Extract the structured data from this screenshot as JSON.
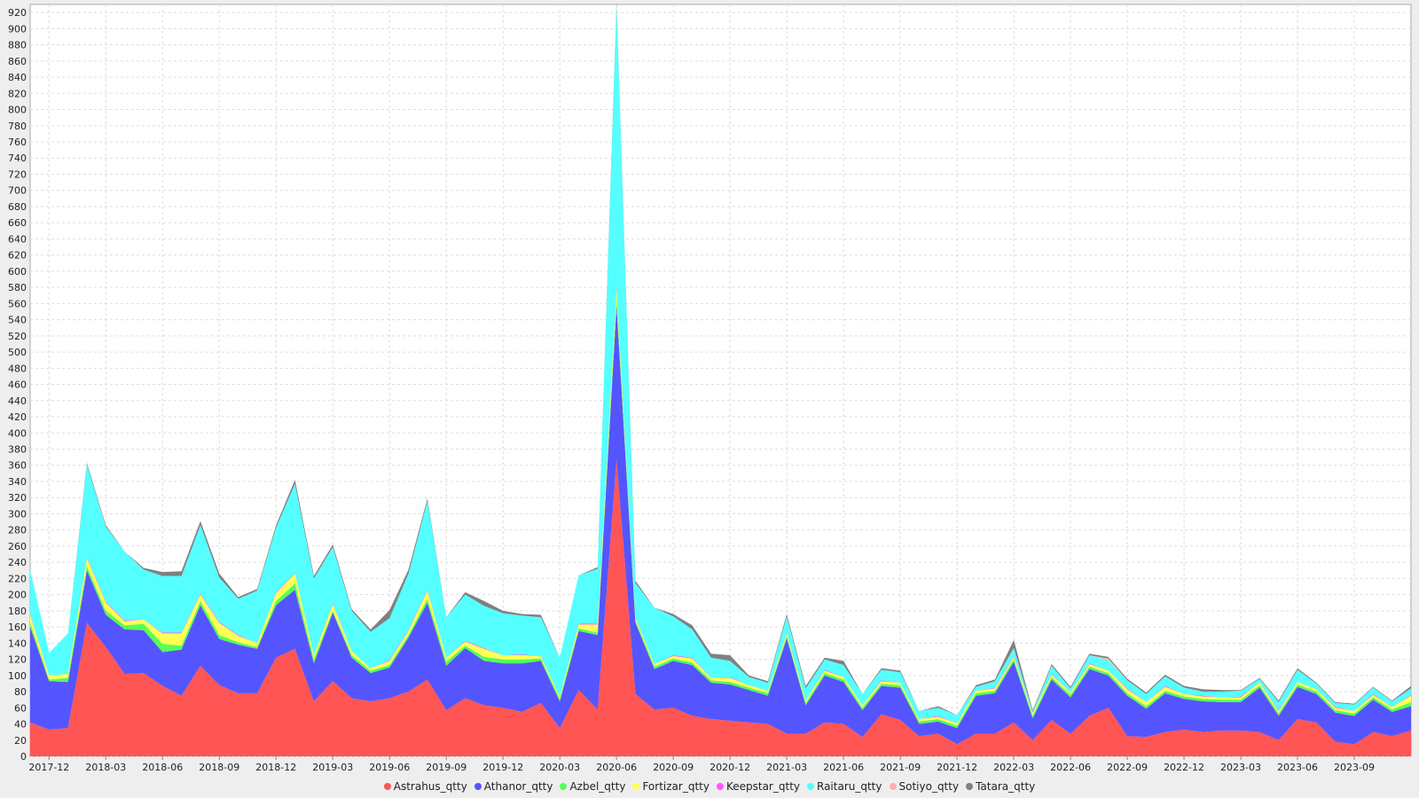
{
  "chart_data": {
    "type": "area",
    "stacked": true,
    "grid": true,
    "legend": "bottom-center",
    "ylim": [
      0,
      930
    ],
    "y_ticks": [
      0,
      20,
      40,
      60,
      80,
      100,
      120,
      140,
      160,
      180,
      200,
      220,
      240,
      260,
      280,
      300,
      320,
      340,
      360,
      380,
      400,
      420,
      440,
      460,
      480,
      500,
      520,
      540,
      560,
      580,
      600,
      620,
      640,
      660,
      680,
      700,
      720,
      740,
      760,
      780,
      800,
      820,
      840,
      860,
      880,
      900,
      920
    ],
    "x_tick_labels": [
      "2017-12",
      "2018-03",
      "2018-06",
      "2018-09",
      "2018-12",
      "2019-03",
      "2019-06",
      "2019-09",
      "2019-12",
      "2020-03",
      "2020-06",
      "2020-09",
      "2020-12",
      "2021-03",
      "2021-06",
      "2021-09",
      "2021-12",
      "2022-03",
      "2022-06",
      "2022-09",
      "2022-12",
      "2023-03",
      "2023-06",
      "2023-09"
    ],
    "x": [
      "2017-11",
      "2017-12",
      "2018-01",
      "2018-02",
      "2018-03",
      "2018-04",
      "2018-05",
      "2018-06",
      "2018-07",
      "2018-08",
      "2018-09",
      "2018-10",
      "2018-11",
      "2018-12",
      "2019-01",
      "2019-02",
      "2019-03",
      "2019-04",
      "2019-05",
      "2019-06",
      "2019-07",
      "2019-08",
      "2019-09",
      "2019-10",
      "2019-11",
      "2019-12",
      "2020-01",
      "2020-02",
      "2020-03",
      "2020-04",
      "2020-05",
      "2020-06",
      "2020-07",
      "2020-08",
      "2020-09",
      "2020-10",
      "2020-11",
      "2020-12",
      "2021-01",
      "2021-02",
      "2021-03",
      "2021-04",
      "2021-05",
      "2021-06",
      "2021-07",
      "2021-08",
      "2021-09",
      "2021-10",
      "2021-11",
      "2021-12",
      "2022-01",
      "2022-02",
      "2022-03",
      "2022-04",
      "2022-05",
      "2022-06",
      "2022-07",
      "2022-08",
      "2022-09",
      "2022-10",
      "2022-11",
      "2022-12",
      "2023-01",
      "2023-02",
      "2023-03",
      "2023-04",
      "2023-05",
      "2023-06",
      "2023-07",
      "2023-08",
      "2023-09",
      "2023-10",
      "2023-11",
      "2023-12"
    ],
    "series": [
      {
        "name": "Astrahus_qtty",
        "color": "#ff5555",
        "values": [
          42,
          33,
          35,
          165,
          135,
          102,
          103,
          87,
          75,
          112,
          88,
          78,
          78,
          122,
          133,
          68,
          93,
          72,
          68,
          72,
          80,
          95,
          57,
          72,
          63,
          60,
          55,
          66,
          35,
          82,
          58,
          367,
          77,
          58,
          60,
          50,
          46,
          44,
          42,
          40,
          28,
          28,
          42,
          40,
          24,
          52,
          45,
          25,
          28,
          15,
          28,
          28,
          42,
          20,
          45,
          28,
          50,
          60,
          25,
          24,
          30,
          33,
          30,
          32,
          32,
          30,
          20,
          46,
          42,
          18,
          15,
          30,
          25,
          32
        ]
      },
      {
        "name": "Athanor_qtty",
        "color": "#5555ff",
        "values": [
          118,
          60,
          57,
          65,
          40,
          55,
          53,
          42,
          57,
          75,
          57,
          60,
          55,
          65,
          73,
          47,
          85,
          50,
          35,
          38,
          67,
          95,
          55,
          62,
          55,
          55,
          60,
          52,
          33,
          73,
          92,
          190,
          88,
          50,
          58,
          63,
          45,
          45,
          40,
          35,
          118,
          35,
          58,
          52,
          33,
          35,
          40,
          15,
          15,
          20,
          47,
          50,
          75,
          27,
          50,
          45,
          58,
          40,
          50,
          35,
          48,
          38,
          38,
          35,
          35,
          55,
          30,
          40,
          35,
          36,
          35,
          40,
          30,
          30
        ]
      },
      {
        "name": "Azbel_qtty",
        "color": "#55ff55",
        "values": [
          5,
          2,
          5,
          5,
          5,
          5,
          8,
          10,
          5,
          5,
          5,
          3,
          2,
          5,
          8,
          5,
          2,
          3,
          3,
          3,
          3,
          5,
          5,
          3,
          5,
          5,
          5,
          3,
          3,
          3,
          3,
          10,
          3,
          3,
          3,
          3,
          3,
          3,
          3,
          3,
          3,
          3,
          3,
          3,
          3,
          3,
          3,
          3,
          3,
          3,
          3,
          3,
          3,
          3,
          3,
          3,
          3,
          3,
          3,
          3,
          3,
          3,
          3,
          3,
          3,
          3,
          3,
          3,
          3,
          3,
          3,
          3,
          3,
          5
        ]
      },
      {
        "name": "Fortizar_qtty",
        "color": "#ffff55",
        "values": [
          10,
          5,
          5,
          10,
          10,
          5,
          5,
          13,
          15,
          8,
          15,
          8,
          5,
          10,
          12,
          5,
          8,
          5,
          3,
          5,
          5,
          10,
          5,
          5,
          10,
          5,
          5,
          3,
          3,
          5,
          10,
          10,
          3,
          3,
          3,
          5,
          3,
          5,
          3,
          3,
          3,
          3,
          3,
          3,
          3,
          3,
          3,
          3,
          3,
          3,
          3,
          3,
          3,
          3,
          3,
          3,
          3,
          3,
          5,
          5,
          5,
          3,
          3,
          3,
          3,
          3,
          3,
          3,
          3,
          3,
          3,
          3,
          3,
          8
        ]
      },
      {
        "name": "Keepstar_qtty",
        "color": "#ff55ff",
        "values": [
          1,
          0,
          0,
          1,
          1,
          1,
          0,
          1,
          1,
          1,
          1,
          1,
          0,
          1,
          1,
          0,
          1,
          0,
          0,
          1,
          1,
          1,
          0,
          1,
          1,
          0,
          1,
          0,
          0,
          1,
          1,
          2,
          1,
          0,
          1,
          1,
          0,
          1,
          0,
          0,
          1,
          0,
          1,
          0,
          0,
          1,
          0,
          0,
          1,
          0,
          0,
          1,
          1,
          0,
          1,
          0,
          1,
          0,
          1,
          0,
          1,
          0,
          1,
          0,
          1,
          0,
          1,
          0,
          0,
          1,
          0,
          1,
          0,
          1
        ]
      },
      {
        "name": "Raitaru_qtty",
        "color": "#55ffff",
        "values": [
          55,
          28,
          50,
          115,
          93,
          85,
          62,
          70,
          70,
          85,
          55,
          45,
          65,
          80,
          110,
          95,
          70,
          50,
          45,
          52,
          70,
          110,
          50,
          57,
          52,
          52,
          48,
          48,
          48,
          60,
          68,
          350,
          42,
          70,
          48,
          35,
          25,
          20,
          10,
          10,
          20,
          15,
          13,
          15,
          14,
          13,
          13,
          10,
          10,
          10,
          5,
          8,
          10,
          2,
          10,
          5,
          10,
          13,
          10,
          10,
          12,
          8,
          5,
          7,
          7,
          5,
          10,
          15,
          7,
          5,
          8,
          8,
          7,
          8
        ]
      },
      {
        "name": "Sotiyo_qtty",
        "color": "#ffafaf",
        "values": [
          0,
          0,
          0,
          0,
          0,
          0,
          0,
          0,
          0,
          0,
          0,
          0,
          0,
          0,
          0,
          0,
          0,
          0,
          0,
          0,
          0,
          0,
          0,
          0,
          0,
          0,
          0,
          0,
          0,
          0,
          0,
          0,
          0,
          0,
          0,
          0,
          0,
          0,
          0,
          0,
          0,
          0,
          0,
          0,
          0,
          0,
          0,
          0,
          0,
          0,
          0,
          0,
          0,
          0,
          0,
          0,
          0,
          2,
          0,
          0,
          0,
          0,
          0,
          0,
          0,
          0,
          0,
          0,
          0,
          0,
          0,
          0,
          0,
          0
        ]
      },
      {
        "name": "Tatara_qtty",
        "color": "#808080",
        "values": [
          0,
          0,
          0,
          2,
          2,
          0,
          2,
          5,
          6,
          5,
          5,
          2,
          2,
          3,
          5,
          3,
          3,
          2,
          3,
          10,
          5,
          3,
          0,
          3,
          6,
          3,
          2,
          3,
          0,
          0,
          2,
          3,
          3,
          0,
          3,
          5,
          5,
          7,
          2,
          2,
          3,
          3,
          2,
          5,
          0,
          2,
          2,
          0,
          2,
          0,
          2,
          2,
          10,
          2,
          2,
          2,
          2,
          2,
          2,
          2,
          2,
          2,
          3,
          2,
          1,
          1,
          2,
          2,
          1,
          1,
          1,
          1,
          1,
          3
        ]
      }
    ]
  }
}
